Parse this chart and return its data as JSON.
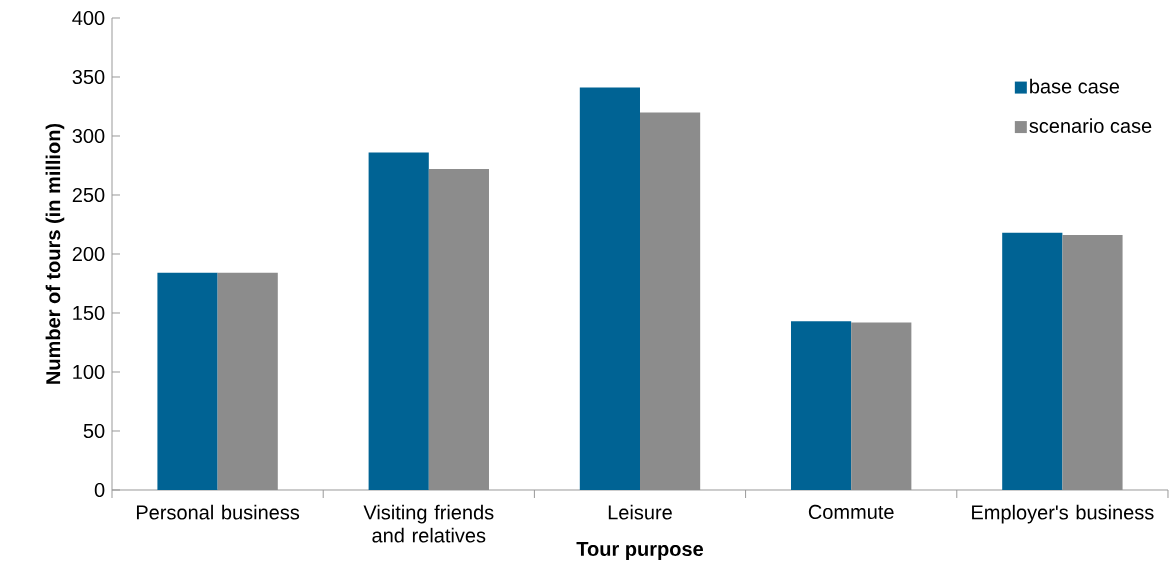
{
  "chart_data": {
    "type": "bar",
    "xlabel": "Tour purpose",
    "ylabel": "Number of tours (in million)",
    "categories": [
      "Personal business",
      "Visiting friends and relatives",
      "Leisure",
      "Commute",
      "Employer's business"
    ],
    "series": [
      {
        "name": "base case",
        "color": "#006394",
        "values": [
          184,
          286,
          341,
          143,
          218
        ]
      },
      {
        "name": "scenario case",
        "color": "#8c8c8c",
        "values": [
          184,
          272,
          320,
          142,
          216
        ]
      }
    ],
    "ylim": [
      0,
      400
    ],
    "yticks": [
      0,
      50,
      100,
      150,
      200,
      250,
      300,
      350,
      400
    ],
    "legend": "top right"
  }
}
